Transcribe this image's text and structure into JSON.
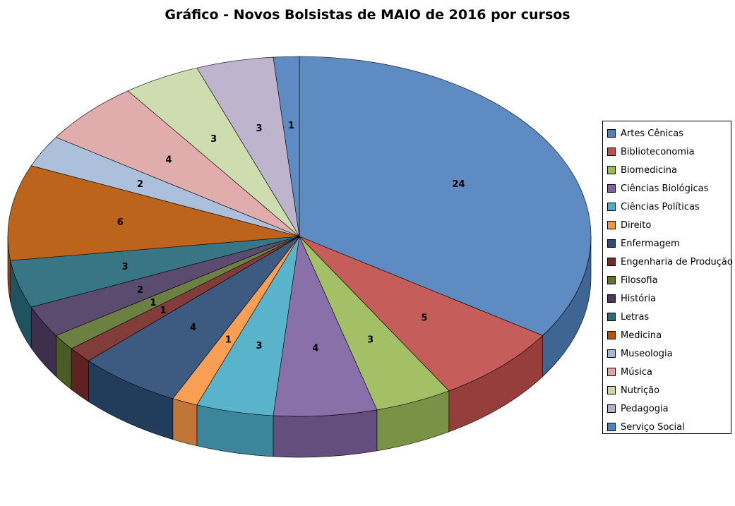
{
  "chart_data": {
    "type": "pie",
    "title": "Gráfico - Novos Bolsistas de MAIO de 2016 por cursos",
    "legend_position": "right",
    "categories": [
      "Artes Cênicas",
      "Biblioteconomia",
      "Biomedicina",
      "Ciências Biológicas",
      "Ciências Políticas",
      "Direito",
      "Enfermagem",
      "Engenharia de Produção",
      "Filosofia",
      "História",
      "Letras",
      "Medicina",
      "Museologia",
      "Música",
      "Nutrição",
      "Pedagogia",
      "Serviço Social"
    ],
    "values": [
      24,
      5,
      3,
      4,
      3,
      1,
      4,
      1,
      1,
      2,
      3,
      6,
      2,
      4,
      3,
      3,
      1
    ],
    "colors": [
      "#4F81BD",
      "#C0504D",
      "#9BBB59",
      "#8064A2",
      "#4BACC6",
      "#F79646",
      "#2C4D75",
      "#772C2A",
      "#5F7530",
      "#4D3B62",
      "#276A7C",
      "#B65708",
      "#A5B9D8",
      "#DDA6A5",
      "#C9DAA9",
      "#B9ADC9",
      "#4F81BD"
    ]
  }
}
